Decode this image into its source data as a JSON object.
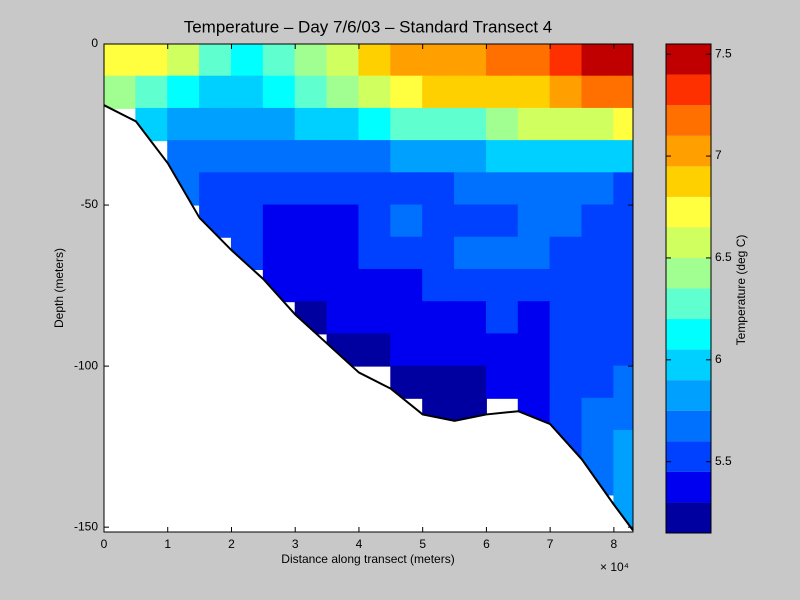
{
  "chart_data": {
    "type": "contour",
    "title": "Temperature – Day 7/6/03 – Standard Transect 4",
    "xlabel": "Distance along transect (meters)",
    "ylabel": "Depth (meters)",
    "x_exponent_label": "× 10⁴",
    "xlim": [
      0,
      83000
    ],
    "ylim": [
      -151.5,
      0
    ],
    "xticks": [
      0,
      {
        "value": 10000,
        "label": "1"
      },
      {
        "value": 20000,
        "label": "2"
      },
      {
        "value": 30000,
        "label": "3"
      },
      {
        "value": 40000,
        "label": "4"
      },
      {
        "value": 50000,
        "label": "5"
      },
      {
        "value": 60000,
        "label": "6"
      },
      {
        "value": 70000,
        "label": "7"
      },
      {
        "value": 80000,
        "label": "8"
      }
    ],
    "yticks": [
      0,
      -50,
      -100,
      -150
    ],
    "x": [
      2500,
      7500,
      12500,
      17500,
      22500,
      27500,
      32500,
      37500,
      42500,
      47500,
      52500,
      57500,
      62500,
      67500,
      72500,
      77500,
      82500
    ],
    "y": [
      -5,
      -15,
      -25,
      -35,
      -45,
      -55,
      -65,
      -75,
      -85,
      -95,
      -105,
      -115,
      -125,
      -135,
      -145
    ],
    "z": [
      [
        6.75,
        6.75,
        6.5,
        6.3,
        6.1,
        6.2,
        6.4,
        6.6,
        6.8,
        7.0,
        7.0,
        7.0,
        7.1,
        7.2,
        7.3,
        7.4,
        7.5
      ],
      [
        6.4,
        6.2,
        6.1,
        6.0,
        6.0,
        6.1,
        6.2,
        6.4,
        6.6,
        6.7,
        6.8,
        6.8,
        6.9,
        6.9,
        7.0,
        7.1,
        7.2
      ],
      [
        null,
        5.9,
        5.8,
        5.75,
        5.8,
        5.85,
        5.9,
        6.0,
        6.1,
        6.2,
        6.3,
        6.3,
        6.4,
        6.5,
        6.6,
        6.6,
        6.7
      ],
      [
        null,
        null,
        5.7,
        5.65,
        5.6,
        5.6,
        5.65,
        5.7,
        5.7,
        5.75,
        5.8,
        5.85,
        5.9,
        5.95,
        5.95,
        6.0,
        6.0
      ],
      [
        null,
        null,
        5.6,
        5.5,
        5.5,
        5.45,
        5.45,
        5.5,
        5.5,
        5.55,
        5.55,
        5.6,
        5.6,
        5.6,
        5.65,
        5.6,
        5.55
      ],
      [
        null,
        null,
        null,
        5.5,
        5.45,
        5.3,
        5.3,
        5.35,
        5.5,
        5.6,
        5.55,
        5.5,
        5.55,
        5.65,
        5.6,
        5.5,
        5.5
      ],
      [
        null,
        null,
        null,
        null,
        5.45,
        5.4,
        5.35,
        5.4,
        5.45,
        5.5,
        5.5,
        5.6,
        5.65,
        5.6,
        5.5,
        5.5,
        5.5
      ],
      [
        null,
        null,
        null,
        null,
        null,
        5.4,
        5.35,
        5.35,
        5.4,
        5.4,
        5.45,
        5.5,
        5.5,
        5.5,
        5.45,
        5.45,
        5.45
      ],
      [
        null,
        null,
        null,
        null,
        null,
        null,
        5.25,
        5.3,
        5.35,
        5.4,
        5.4,
        5.4,
        5.45,
        5.4,
        5.45,
        5.45,
        5.5
      ],
      [
        null,
        null,
        null,
        null,
        null,
        null,
        null,
        5.25,
        5.25,
        5.3,
        5.3,
        5.3,
        5.35,
        5.35,
        5.45,
        5.5,
        5.55
      ],
      [
        null,
        null,
        null,
        null,
        null,
        null,
        null,
        null,
        null,
        5.25,
        5.25,
        5.25,
        5.3,
        5.3,
        5.45,
        5.55,
        5.6
      ],
      [
        null,
        null,
        null,
        null,
        null,
        null,
        null,
        null,
        null,
        null,
        5.25,
        5.25,
        null,
        5.3,
        5.5,
        5.6,
        5.7
      ],
      [
        null,
        null,
        null,
        null,
        null,
        null,
        null,
        null,
        null,
        null,
        null,
        null,
        null,
        null,
        5.5,
        5.6,
        5.75
      ],
      [
        null,
        null,
        null,
        null,
        null,
        null,
        null,
        null,
        null,
        null,
        null,
        null,
        null,
        null,
        null,
        5.65,
        5.8
      ],
      [
        null,
        null,
        null,
        null,
        null,
        null,
        null,
        null,
        null,
        null,
        null,
        null,
        null,
        null,
        null,
        null,
        5.8
      ]
    ],
    "bottom": {
      "x": [
        0,
        5000,
        10000,
        15000,
        20000,
        25000,
        30000,
        35000,
        40000,
        45000,
        50000,
        55000,
        60000,
        65000,
        70000,
        75000,
        80000,
        83000
      ],
      "y": [
        -19,
        -24,
        -37,
        -54,
        -64,
        -73,
        -84,
        -93,
        -102,
        -107,
        -115,
        -117,
        -115,
        -114,
        -118,
        -129,
        -143,
        -151
      ]
    },
    "colorbar": {
      "label": "Temperature (deg C)",
      "levels": [
        5.15,
        5.3,
        5.45,
        5.6,
        5.75,
        5.9,
        6.05,
        6.2,
        6.35,
        6.5,
        6.65,
        6.8,
        6.95,
        7.1,
        7.25,
        7.4,
        7.55
      ],
      "colors": [
        "#0000a0",
        "#0000f0",
        "#0040ff",
        "#0070ff",
        "#00a0ff",
        "#00d0ff",
        "#00ffff",
        "#60ffd0",
        "#a0ff90",
        "#d0ff60",
        "#ffff40",
        "#ffd000",
        "#ffa000",
        "#ff7000",
        "#ff3000",
        "#c00000"
      ],
      "ticks": [
        5.5,
        6,
        6.5,
        7,
        7.5
      ]
    }
  }
}
